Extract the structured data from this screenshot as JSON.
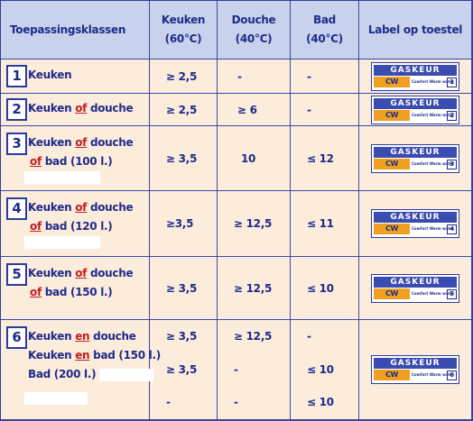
{
  "header": {
    "col1": "Toepassingsklassen",
    "col2_a": "Keuken",
    "col2_b": "(60°C)",
    "col3_a": "Douche",
    "col3_b": "(40°C)",
    "col4_a": "Bad",
    "col4_b": "(40°C)",
    "col5": "Label op toestel"
  },
  "label": {
    "brand": "GASKEUR",
    "cw": "CW",
    "sub": "Comfort Warm water"
  },
  "rows": [
    {
      "num": "1",
      "l1": [
        "Keuken"
      ],
      "keuken": "≥ 2,5",
      "douche": "-",
      "bad": "-",
      "label_num": "1"
    },
    {
      "num": "2",
      "l1": [
        "Keuken ",
        "of",
        " douche"
      ],
      "keuken": "≥ 2,5",
      "douche": "≥ 6",
      "bad": "-",
      "label_num": "2"
    },
    {
      "num": "3",
      "l1": [
        "Keuken ",
        "of",
        " douche"
      ],
      "l2": [
        "of",
        " bad (100 l.)"
      ],
      "keuken": "≥ 3,5",
      "douche": "10",
      "bad": "≤ 12",
      "label_num": "3"
    },
    {
      "num": "4",
      "l1": [
        "Keuken ",
        "of",
        " douche"
      ],
      "l2": [
        "of",
        " bad (120 l.)"
      ],
      "keuken": "≥3,5",
      "douche": "≥ 12,5",
      "bad": "≤ 11",
      "label_num": "4"
    },
    {
      "num": "5",
      "l1": [
        "Keuken ",
        "of",
        " douche"
      ],
      "l2": [
        "of",
        " bad (150 l.)"
      ],
      "keuken": "≥ 3,5",
      "douche": "≥ 12,5",
      "bad": "≤ 10",
      "label_num": "5"
    },
    {
      "num": "6",
      "l1": [
        "Keuken ",
        "en",
        " douche"
      ],
      "l2": [
        "Keuken ",
        "en",
        " bad (150 l.)"
      ],
      "l3": "Bad (200 l.)",
      "keuken": [
        "≥ 3,5",
        "≥ 3,5",
        "-"
      ],
      "douche": [
        "≥ 12,5",
        "-",
        "-"
      ],
      "bad": [
        "-",
        "≤ 10",
        "≤ 10"
      ],
      "label_num": "6"
    }
  ]
}
